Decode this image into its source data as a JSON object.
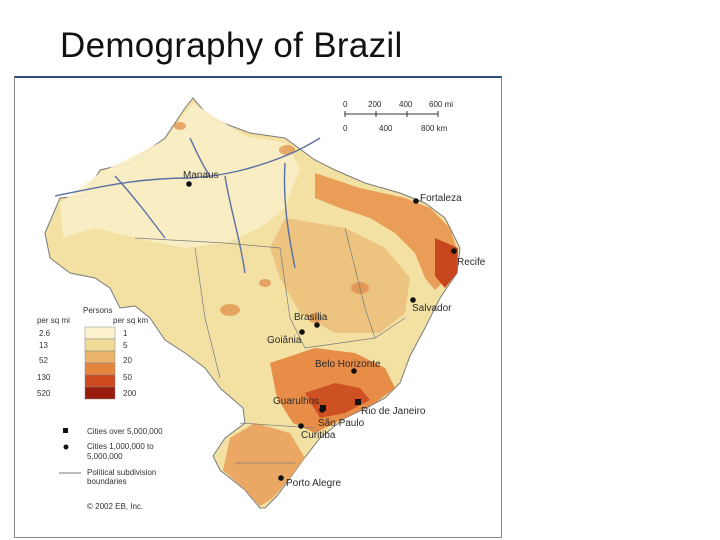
{
  "title": "Demography of Brazil",
  "colors": {
    "land_low": "#f7e9b8",
    "land_mid": "#efd58c",
    "class_20": "#f0b66a",
    "class_50": "#e8823c",
    "class_200": "#c8461d",
    "class_max": "#9e1a0c",
    "river": "#5a6fa6",
    "border": "#7b7b7b",
    "frame_top": "#2f4f7a"
  },
  "scale_bar": {
    "mi_ticks": [
      "0",
      "200",
      "400",
      "600 mi"
    ],
    "km_ticks": [
      "0",
      "400",
      "800 km"
    ]
  },
  "legend": {
    "title": "Persons",
    "col_left": "per sq mi",
    "col_right": "per sq km",
    "rows": [
      {
        "mi": "2.6",
        "km": "1",
        "color": "#fbf2cd"
      },
      {
        "mi": "13",
        "km": "5",
        "color": "#f1db98"
      },
      {
        "mi": "52",
        "km": "20",
        "color": "#ebb46b"
      },
      {
        "mi": "130",
        "km": "50",
        "color": "#e5843d"
      },
      {
        "mi": "520",
        "km": "200",
        "color": "#cc4a1e"
      },
      {
        "mi": "",
        "km": "",
        "color": "#9a1a0c"
      }
    ],
    "cities_large": "Cities over 5,000,000",
    "cities_medium_1": "Cities 1,000,000 to",
    "cities_medium_2": "5,000,000",
    "boundaries_1": "Political subdivision",
    "boundaries_2": "boundaries",
    "copyright": "© 2002 EB, Inc."
  },
  "cities": [
    {
      "name": "Manaus",
      "size": "medium"
    },
    {
      "name": "Fortaleza",
      "size": "medium"
    },
    {
      "name": "Recife",
      "size": "medium"
    },
    {
      "name": "Salvador",
      "size": "medium"
    },
    {
      "name": "Brasília",
      "size": "medium"
    },
    {
      "name": "Goiânia",
      "size": "medium"
    },
    {
      "name": "Belo Horizonte",
      "size": "medium"
    },
    {
      "name": "Guarulhos",
      "size": "medium"
    },
    {
      "name": "Rio de Janeiro",
      "size": "large"
    },
    {
      "name": "São Paulo",
      "size": "large"
    },
    {
      "name": "Curitiba",
      "size": "medium"
    },
    {
      "name": "Porto Alegre",
      "size": "medium"
    }
  ]
}
